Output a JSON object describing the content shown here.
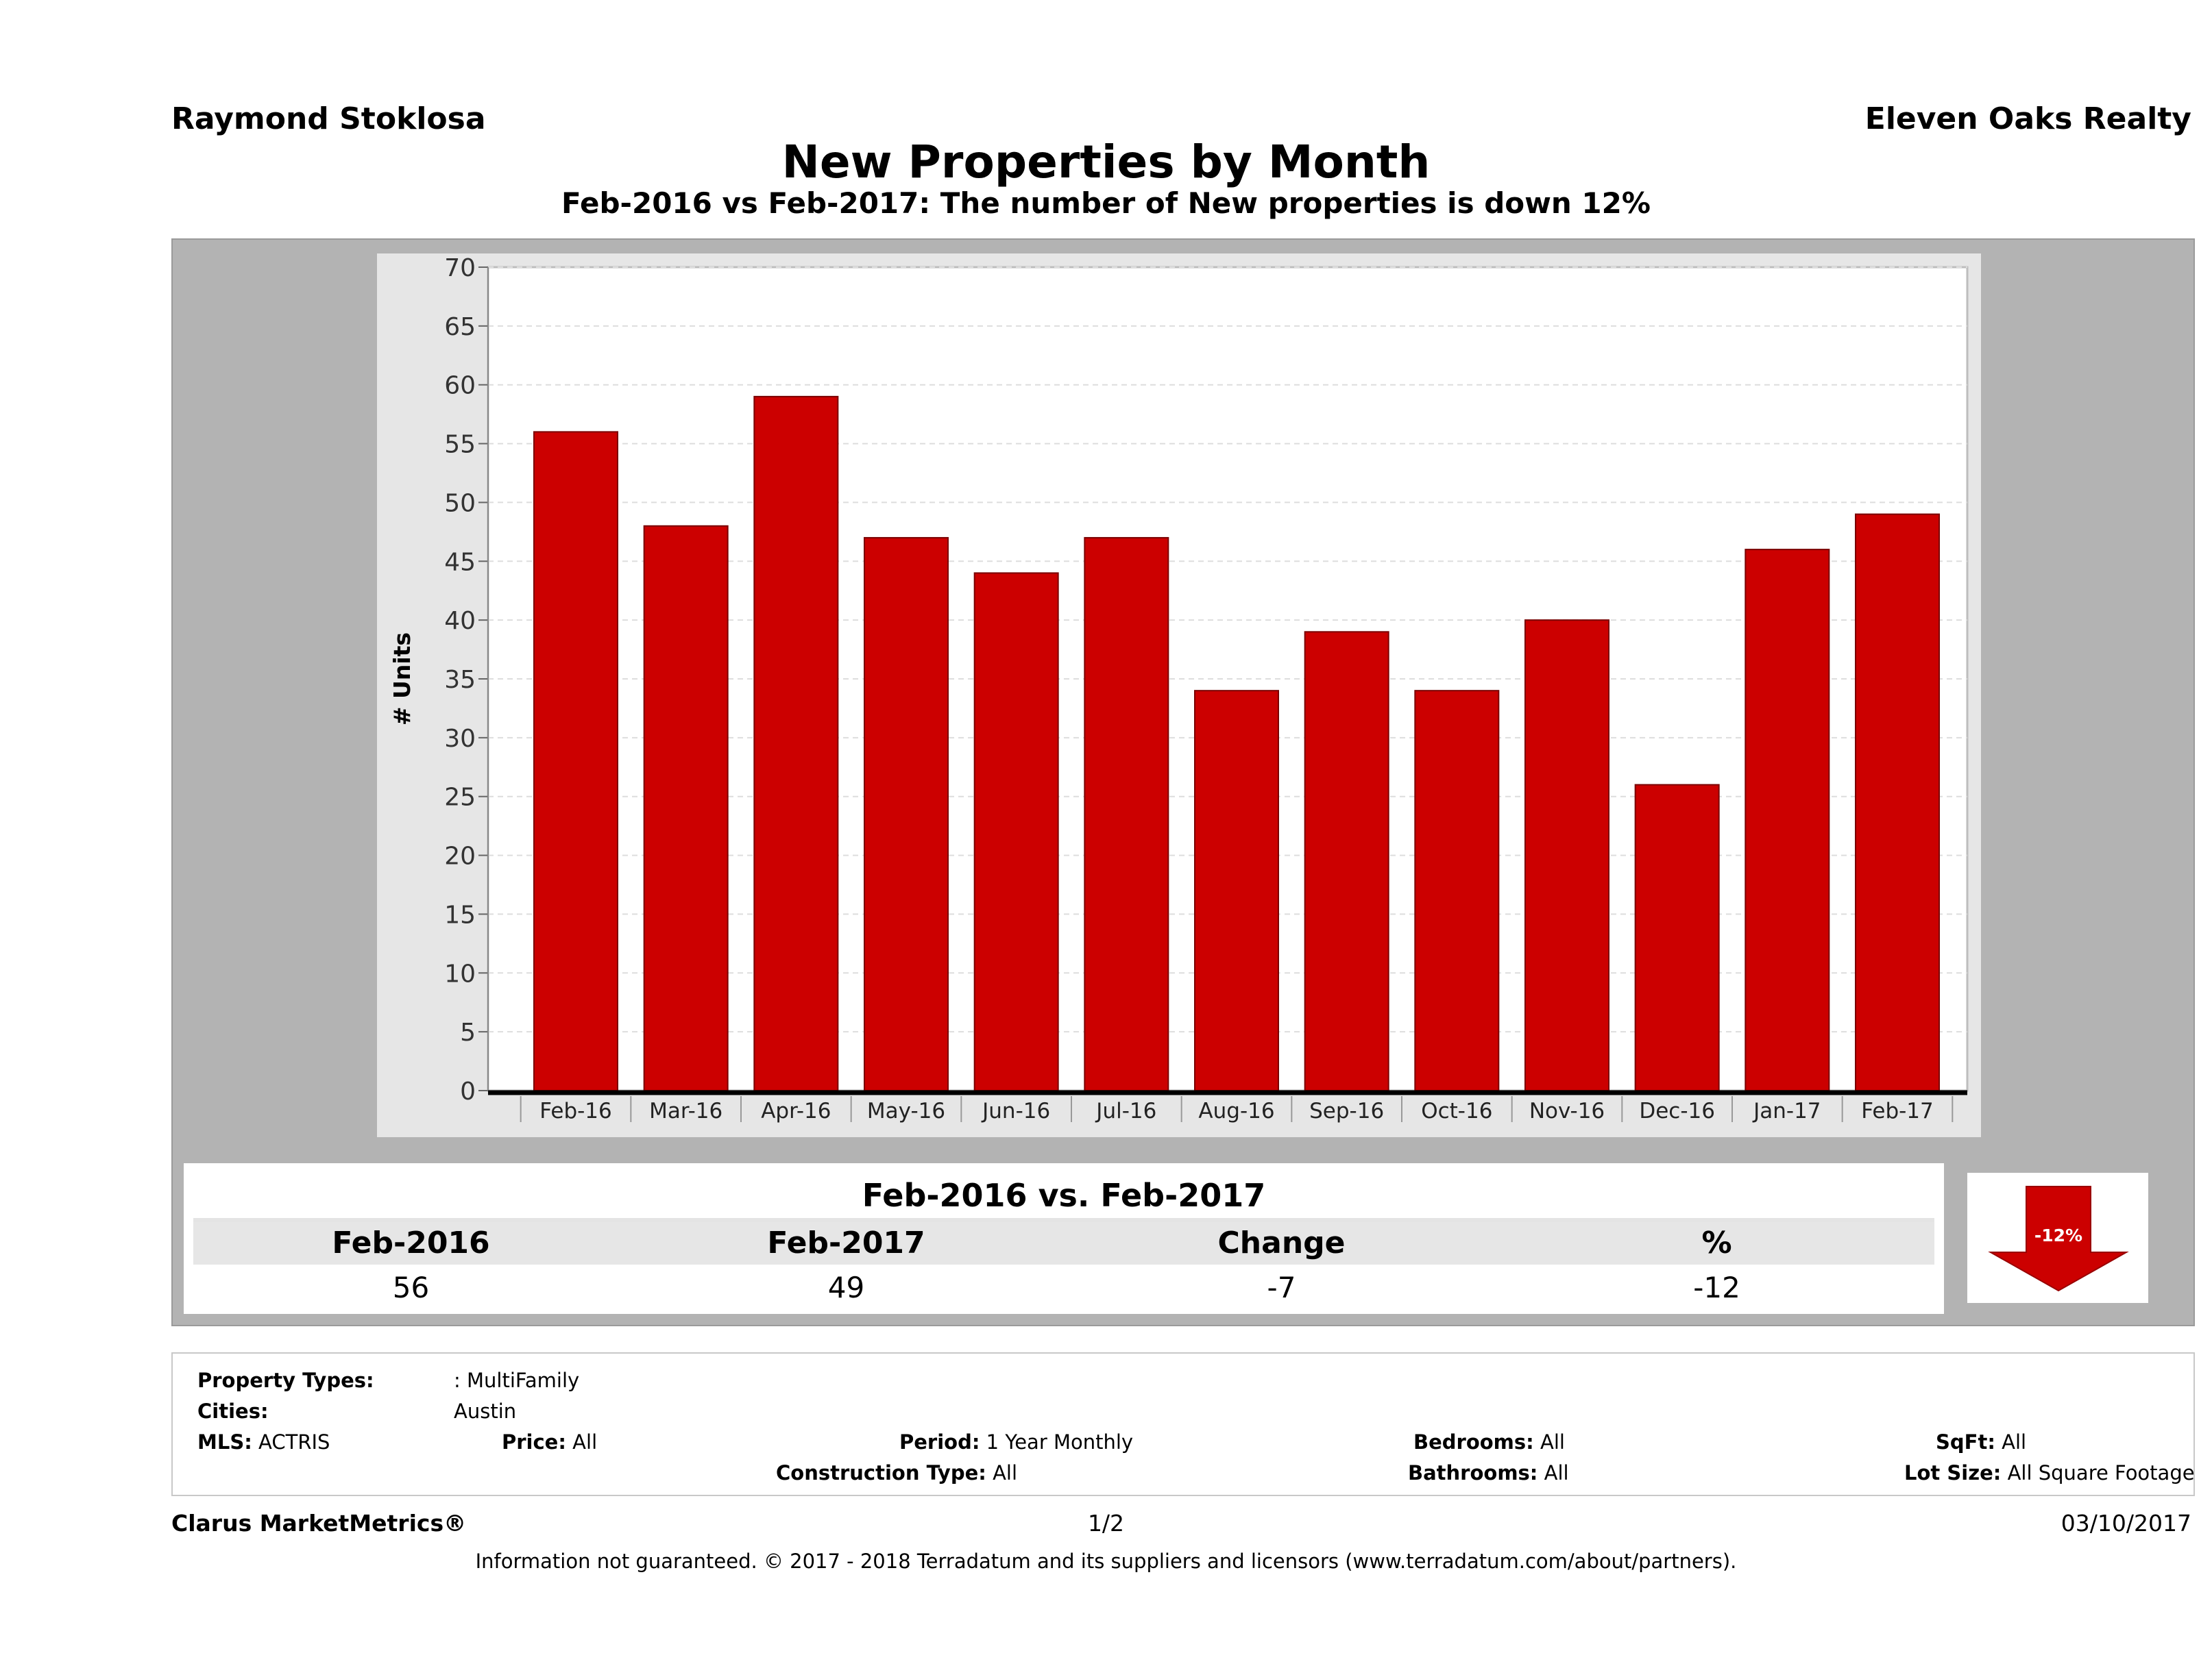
{
  "header": {
    "agent": "Raymond Stoklosa",
    "company": "Eleven Oaks Realty",
    "title": "New Properties by Month",
    "subtitle": "Feb-2016 vs Feb-2017: The number of New  properties is down 12%"
  },
  "chart_data": {
    "type": "bar",
    "title": "New Properties by Month",
    "ylabel": "# Units",
    "xlabel": "",
    "ylim": [
      0,
      70
    ],
    "yticks": [
      0,
      5,
      10,
      15,
      20,
      25,
      30,
      35,
      40,
      45,
      50,
      55,
      60,
      65,
      70
    ],
    "categories": [
      "Feb-16",
      "Mar-16",
      "Apr-16",
      "May-16",
      "Jun-16",
      "Jul-16",
      "Aug-16",
      "Sep-16",
      "Oct-16",
      "Nov-16",
      "Dec-16",
      "Jan-17",
      "Feb-17"
    ],
    "values": [
      56,
      48,
      59,
      47,
      44,
      47,
      34,
      39,
      34,
      40,
      26,
      46,
      49
    ],
    "grid": true,
    "bar_color": "#cc0000"
  },
  "summary": {
    "heading": "Feb-2016 vs. Feb-2017",
    "labels": [
      "Feb-2016",
      "Feb-2017",
      "Change",
      "%"
    ],
    "values": [
      "56",
      "49",
      "-7",
      "-12"
    ],
    "badge": "-12%",
    "badge_color": "#cc0000"
  },
  "criteria": {
    "property_types_label": "Property Types:",
    "property_types_value": ": MultiFamily",
    "cities_label": "Cities:",
    "cities_value": "Austin",
    "mls_label": "MLS:",
    "mls_value": "ACTRIS",
    "price_label": "Price:",
    "price_value": "All",
    "period_label": "Period:",
    "period_value": "1 Year Monthly",
    "construction_label": "Construction Type:",
    "construction_value": "All",
    "bedrooms_label": "Bedrooms:",
    "bedrooms_value": "All",
    "bathrooms_label": "Bathrooms:",
    "bathrooms_value": "All",
    "sqft_label": "SqFt:",
    "sqft_value": "All",
    "lot_label": "Lot Size:",
    "lot_value": "All Square Footage"
  },
  "footer": {
    "brand": "Clarus MarketMetrics®",
    "page": "1/2",
    "date": "03/10/2017",
    "disclaimer": "Information not guaranteed. © 2017 - 2018 Terradatum and its suppliers and licensors (www.terradatum.com/about/partners)."
  }
}
